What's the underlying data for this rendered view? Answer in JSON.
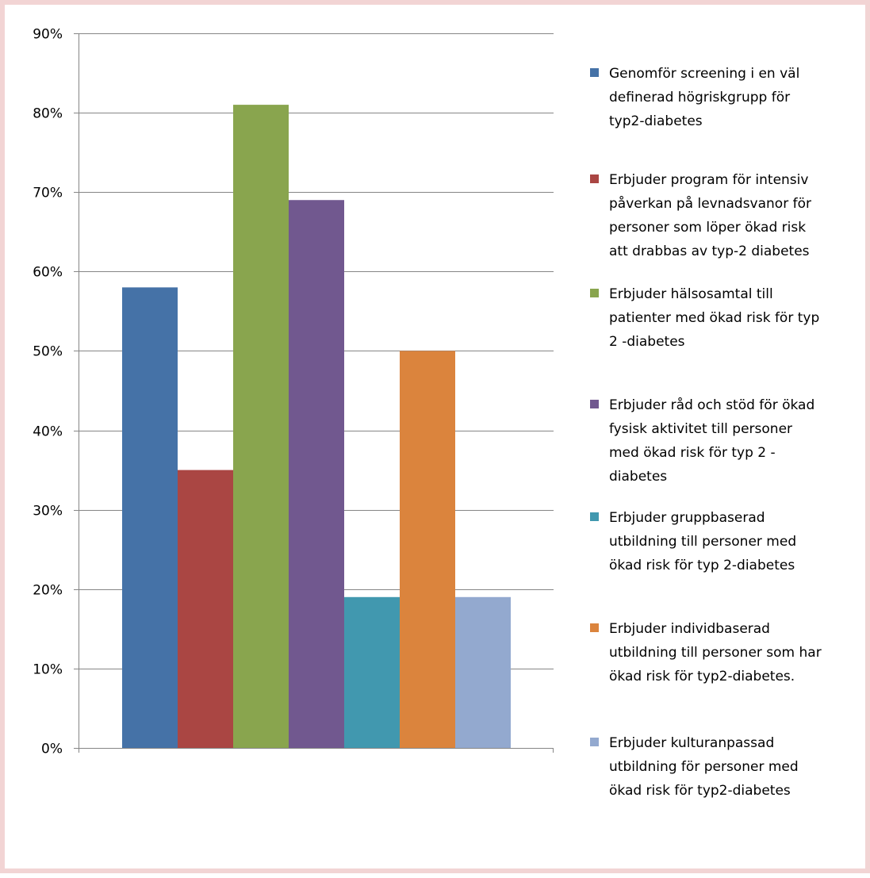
{
  "chart_data": {
    "type": "bar",
    "title": "",
    "xlabel": "",
    "ylabel": "",
    "ylim": [
      0,
      0.9
    ],
    "yticks": [
      "0%",
      "10%",
      "20%",
      "30%",
      "40%",
      "50%",
      "60%",
      "70%",
      "80%",
      "90%"
    ],
    "grid": true,
    "legend_position": "right",
    "series": [
      {
        "name": "Genomför screening i en väl definerad högriskgrupp för typ2-diabetes",
        "value": 0.58,
        "color": "#4572a7"
      },
      {
        "name": "Erbjuder program för intensiv påverkan på levnadsvanor för personer som löper ökad risk att drabbas av typ-2 diabetes",
        "value": 0.35,
        "color": "#aa4643"
      },
      {
        "name": "Erbjuder hälsosamtal till patienter med ökad risk för typ 2 -diabetes",
        "value": 0.81,
        "color": "#89a54e"
      },
      {
        "name": "Erbjuder råd och stöd för ökad fysisk aktivitet till personer med ökad risk för typ 2 - diabetes",
        "value": 0.69,
        "color": "#71588f"
      },
      {
        "name": "Erbjuder gruppbaserad utbildning till personer med ökad risk för typ 2-diabetes",
        "value": 0.19,
        "color": "#4198af"
      },
      {
        "name": "Erbjuder individbaserad utbildning till personer som har ökad risk för typ2-diabetes.",
        "value": 0.5,
        "color": "#db843d"
      },
      {
        "name": "Erbjuder kulturanpassad utbildning för personer med ökad risk för typ2-diabetes",
        "value": 0.19,
        "color": "#93a9cf"
      }
    ],
    "legend_lines": [
      [
        "Genomför screening i en väl",
        "definerad högriskgrupp för",
        "typ2-diabetes"
      ],
      [
        "Erbjuder program för intensiv",
        "påverkan på levnadsvanor för",
        "personer som löper ökad risk",
        "att drabbas av typ-2 diabetes"
      ],
      [
        "Erbjuder hälsosamtal till",
        "patienter med ökad risk för typ",
        "2 -diabetes"
      ],
      [
        "Erbjuder råd och stöd för ökad",
        "fysisk aktivitet till personer",
        "med ökad risk för typ 2 -",
        "diabetes"
      ],
      [
        "Erbjuder gruppbaserad",
        "utbildning till personer med",
        "ökad risk för typ 2-diabetes"
      ],
      [
        "Erbjuder individbaserad",
        "utbildning till personer som har",
        "ökad risk för typ2-diabetes."
      ],
      [
        "Erbjuder kulturanpassad",
        "utbildning för personer med",
        "ökad risk för typ2-diabetes"
      ]
    ],
    "colors": {
      "gridline": "#868686",
      "axis": "#868686",
      "frame_border": "#f2d4d4"
    }
  }
}
